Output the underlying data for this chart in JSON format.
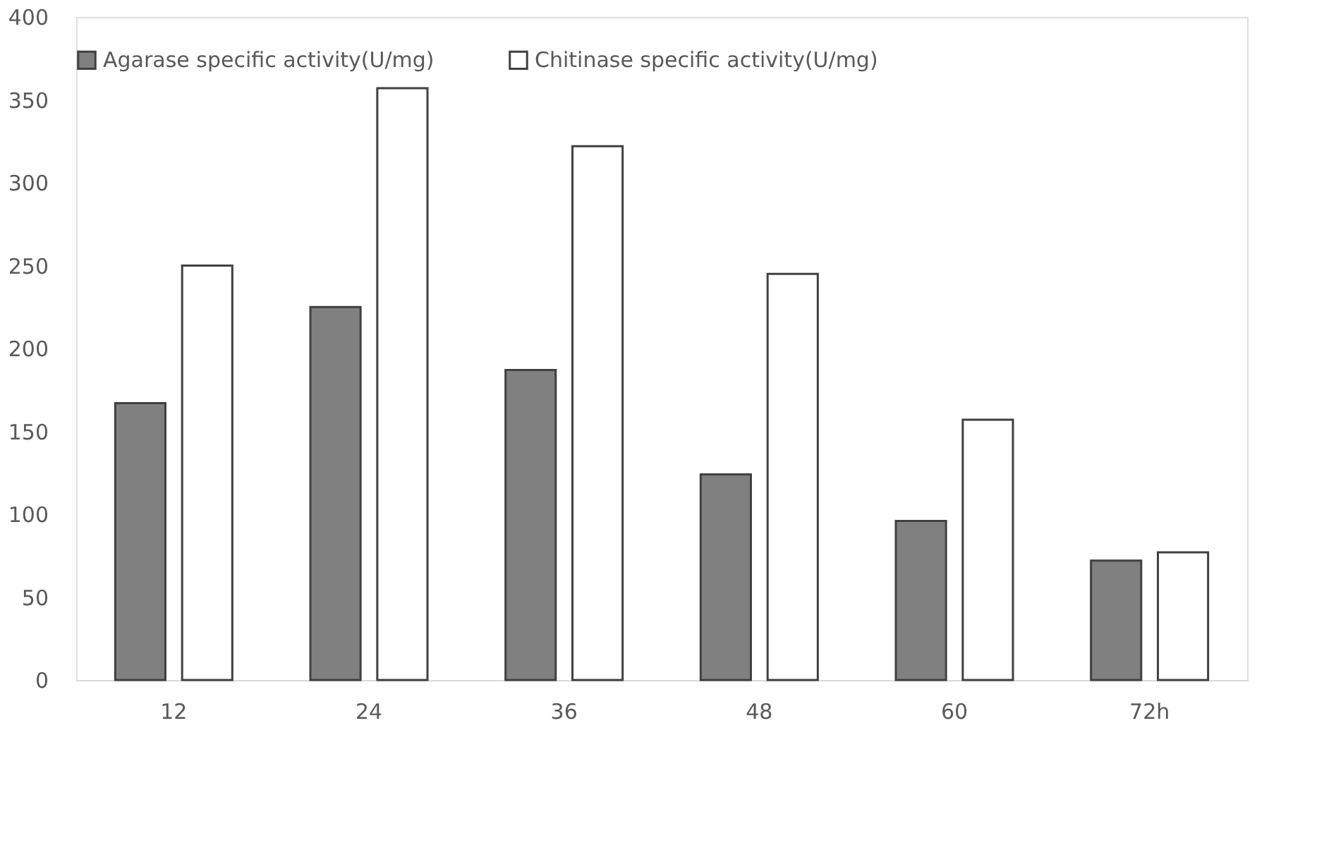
{
  "chart_data": {
    "type": "bar",
    "categories": [
      "12",
      "24",
      "36",
      "48",
      "60",
      "72h"
    ],
    "series": [
      {
        "name": "Agarase specific activity(U/mg)",
        "color": "#808080",
        "values": [
          167,
          225,
          187,
          124,
          96,
          72
        ]
      },
      {
        "name": "Chitinase specific activity(U/mg)",
        "color": "#ffffff",
        "values": [
          250,
          357,
          322,
          245,
          157,
          77
        ]
      }
    ],
    "ylim": [
      0,
      400
    ],
    "yticks": [
      0,
      50,
      100,
      150,
      200,
      250,
      300,
      350,
      400
    ],
    "grid": false,
    "legend": "top"
  }
}
